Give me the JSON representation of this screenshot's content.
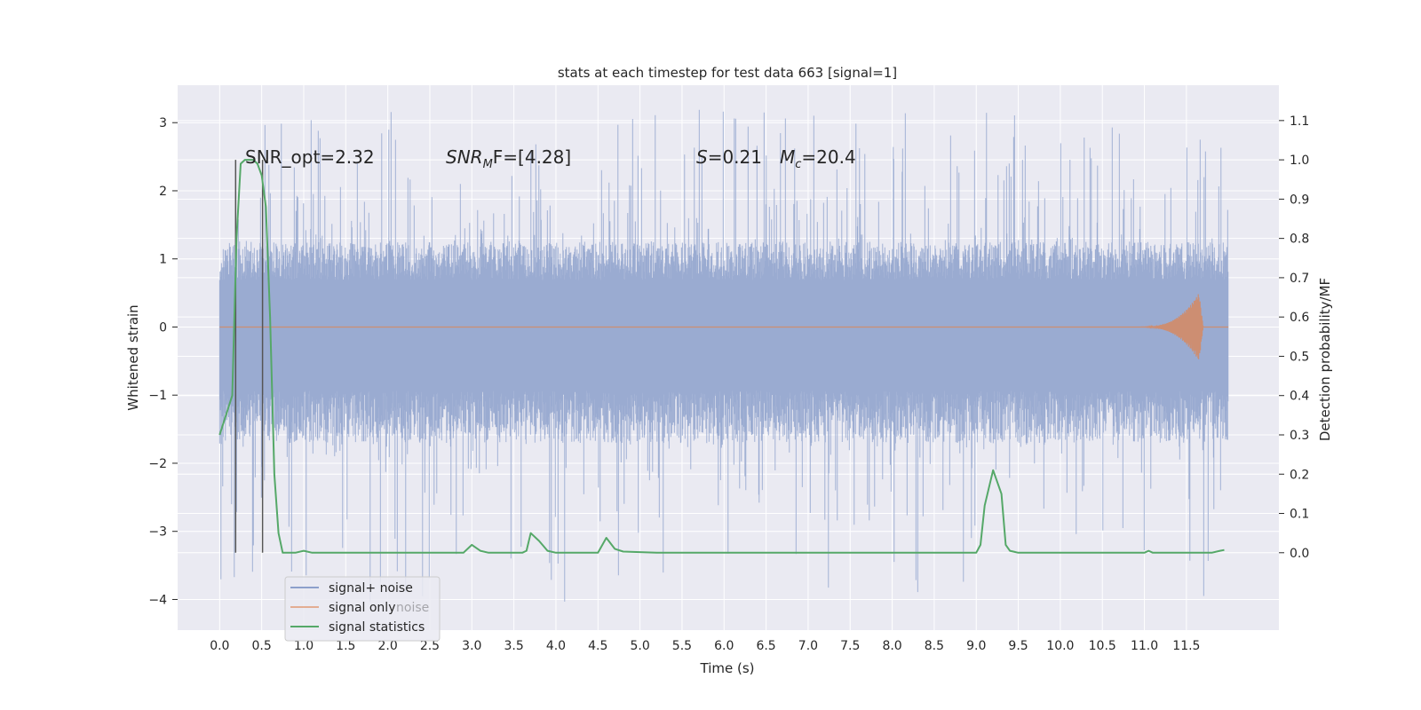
{
  "chart_data": {
    "type": "line",
    "title": "stats at each timestep for test data 663 [signal=1]",
    "xlabel": "Time (s)",
    "ylabel_left": "Whitened strain",
    "ylabel_right": "Detection probability/MF",
    "xlim": [
      -0.5,
      12.6
    ],
    "ylim_left": [
      -4.45,
      3.55
    ],
    "ylim_right": [
      -0.197,
      1.19
    ],
    "xticks": [
      "0.0",
      "0.5",
      "1.0",
      "1.5",
      "2.0",
      "2.5",
      "3.0",
      "3.5",
      "4.0",
      "4.5",
      "5.0",
      "5.5",
      "6.0",
      "6.5",
      "7.0",
      "7.5",
      "8.0",
      "8.5",
      "9.0",
      "9.5",
      "10.0",
      "10.5",
      "11.0",
      "11.5"
    ],
    "yticks_left": [
      "3",
      "2",
      "1",
      "0",
      "−1",
      "−2",
      "−3",
      "−4"
    ],
    "yticks_left_values": [
      3,
      2,
      1,
      0,
      -1,
      -2,
      -3,
      -4
    ],
    "yticks_right": [
      "1.1",
      "1.0",
      "0.9",
      "0.8",
      "0.7",
      "0.6",
      "0.5",
      "0.4",
      "0.3",
      "0.2",
      "0.1",
      "0.0"
    ],
    "yticks_right_values": [
      1.1,
      1.0,
      0.9,
      0.8,
      0.7,
      0.6,
      0.5,
      0.4,
      0.3,
      0.2,
      0.1,
      0.0
    ],
    "grid": true,
    "legend_position": "lower-left",
    "legend": [
      "signal+ noise",
      "signal only",
      "signal statistics"
    ],
    "ghost_legend_text": "noise",
    "annotations": {
      "snr_opt": "SNR_opt=2.32",
      "snr_mf_main": "SNR",
      "snr_mf_sub": "M",
      "snr_mf_rest": "F=[4.28]",
      "s_italic": "S",
      "s_rest": "=0.21",
      "mc_main": "M",
      "mc_sub": "c",
      "mc_rest": "=20.4"
    },
    "series": [
      {
        "name": "signal+ noise",
        "color": "#9aabd1",
        "x_range": [
          0.0,
          12.0
        ],
        "typical_max": 1.25,
        "typical_min": -1.7,
        "peak_max": 3.2,
        "peak_min": -4.1
      },
      {
        "name": "signal only",
        "color": "#dd8452",
        "x_range": [
          0.0,
          11.7
        ],
        "baseline": 0.0,
        "chirp_peak_x": 11.65,
        "chirp_peak_amplitude": 0.5
      },
      {
        "name": "signal statistics",
        "color": "#55a868",
        "points": [
          [
            0.0,
            0.3
          ],
          [
            0.15,
            0.4
          ],
          [
            0.2,
            0.8
          ],
          [
            0.25,
            0.99
          ],
          [
            0.3,
            1.0
          ],
          [
            0.35,
            1.0
          ],
          [
            0.4,
            1.0
          ],
          [
            0.45,
            0.99
          ],
          [
            0.5,
            0.96
          ],
          [
            0.55,
            0.88
          ],
          [
            0.6,
            0.6
          ],
          [
            0.65,
            0.2
          ],
          [
            0.7,
            0.05
          ],
          [
            0.75,
            0.0
          ],
          [
            0.9,
            0.0
          ],
          [
            1.0,
            0.005
          ],
          [
            1.1,
            0.0
          ],
          [
            2.9,
            0.0
          ],
          [
            3.0,
            0.02
          ],
          [
            3.1,
            0.005
          ],
          [
            3.2,
            0.0
          ],
          [
            3.6,
            0.0
          ],
          [
            3.65,
            0.005
          ],
          [
            3.7,
            0.05
          ],
          [
            3.8,
            0.03
          ],
          [
            3.9,
            0.005
          ],
          [
            4.0,
            0.0
          ],
          [
            4.5,
            0.0
          ],
          [
            4.6,
            0.038
          ],
          [
            4.7,
            0.01
          ],
          [
            4.8,
            0.003
          ],
          [
            5.2,
            0.0
          ],
          [
            9.0,
            0.0
          ],
          [
            9.05,
            0.02
          ],
          [
            9.1,
            0.12
          ],
          [
            9.2,
            0.21
          ],
          [
            9.3,
            0.15
          ],
          [
            9.35,
            0.02
          ],
          [
            9.4,
            0.005
          ],
          [
            9.5,
            0.0
          ],
          [
            11.0,
            0.0
          ],
          [
            11.05,
            0.005
          ],
          [
            11.1,
            0.0
          ],
          [
            11.8,
            0.0
          ],
          [
            11.9,
            0.005
          ],
          [
            11.95,
            0.007
          ]
        ]
      },
      {
        "name": "marker lines",
        "color": "#555555",
        "x": [
          0.19,
          0.51
        ],
        "y_right_from": 0.0,
        "y_right_to": 1.0
      }
    ]
  }
}
